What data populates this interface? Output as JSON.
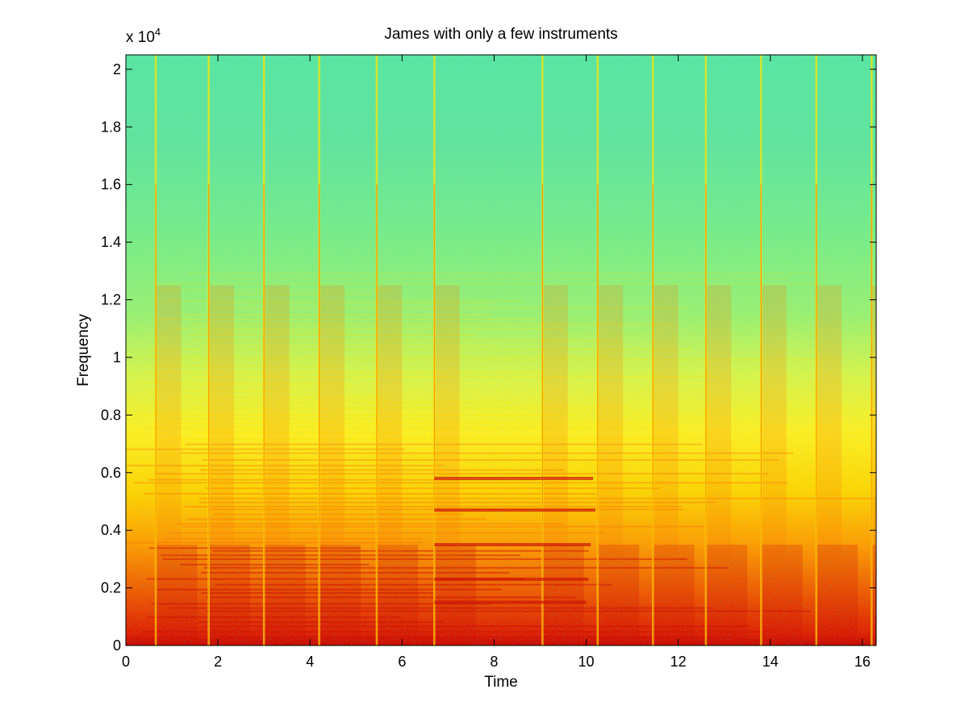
{
  "chart_data": {
    "type": "heatmap",
    "title": "James with only a few instruments",
    "xlabel": "Time",
    "ylabel": "Frequency",
    "y_multiplier": {
      "base": "x 10",
      "exponent": "4"
    },
    "xlim": [
      0,
      16.3
    ],
    "ylim": [
      0,
      20500
    ],
    "x_ticks": [
      0,
      2,
      4,
      6,
      8,
      10,
      12,
      14,
      16
    ],
    "x_tick_labels": [
      "0",
      "2",
      "4",
      "6",
      "8",
      "10",
      "12",
      "14",
      "16"
    ],
    "y_ticks": [
      0,
      2000,
      4000,
      6000,
      8000,
      10000,
      12000,
      14000,
      16000,
      18000,
      20000
    ],
    "y_tick_labels": [
      "0",
      "0.2",
      "0.4",
      "0.6",
      "0.8",
      "1",
      "1.2",
      "1.4",
      "1.6",
      "1.8",
      "2"
    ],
    "colormap": "jet",
    "note_onsets_s": [
      0.65,
      1.8,
      3.0,
      4.2,
      5.45,
      6.7,
      9.05,
      10.25,
      11.45,
      12.6,
      13.8,
      15.0,
      16.2
    ],
    "sustained_tones_hz": [
      4700,
      5800,
      3500,
      2300,
      1500
    ],
    "colors": {
      "high": "#d01000",
      "mid_high": "#ff7a00",
      "mid": "#ffe600",
      "low": "#7df07a",
      "lowest": "#3cd6c8"
    }
  }
}
